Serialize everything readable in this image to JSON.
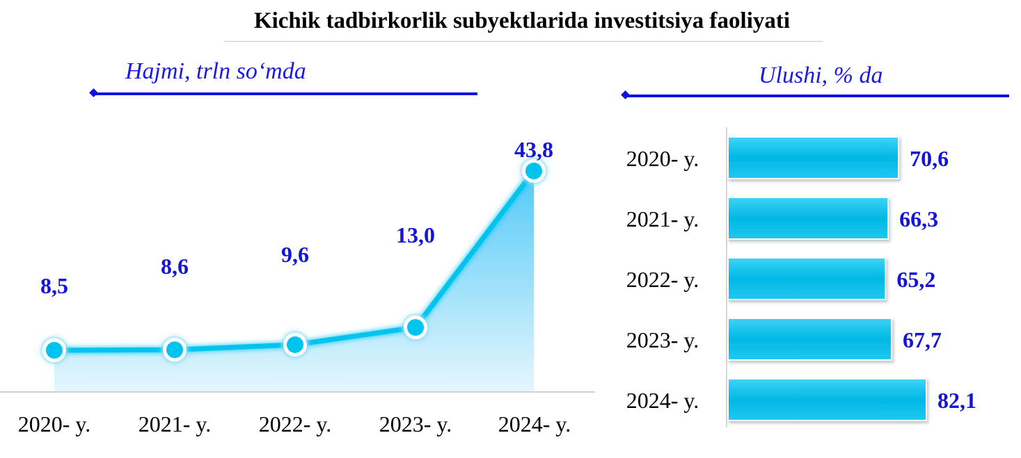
{
  "title": "Kichik tadbirkorlik subyektlarida investitsiya faoliyati",
  "colors": {
    "accent": "#00c4ee",
    "label": "#1515d8",
    "arrow": "#1010e0"
  },
  "chart_data": [
    {
      "type": "area",
      "title": "Hajmi, trln so‘mda",
      "categories": [
        "2020- y.",
        "2021- y.",
        "2022- y.",
        "2023- y.",
        "2024- y."
      ],
      "values": [
        8.5,
        8.6,
        9.6,
        13.0,
        43.8
      ],
      "value_labels": [
        "8,5",
        "8,6",
        "9,6",
        "13,0",
        "43,8"
      ],
      "markers": true,
      "grid": false
    },
    {
      "type": "bar",
      "orientation": "horizontal",
      "title": "Ulushi, % da",
      "categories": [
        "2020- y.",
        "2021- y.",
        "2022- y.",
        "2023- y.",
        "2024- y."
      ],
      "values": [
        70.6,
        66.3,
        65.2,
        67.7,
        82.1
      ],
      "value_labels": [
        "70,6",
        "66,3",
        "65,2",
        "67,7",
        "82,1"
      ],
      "grid": false
    }
  ]
}
